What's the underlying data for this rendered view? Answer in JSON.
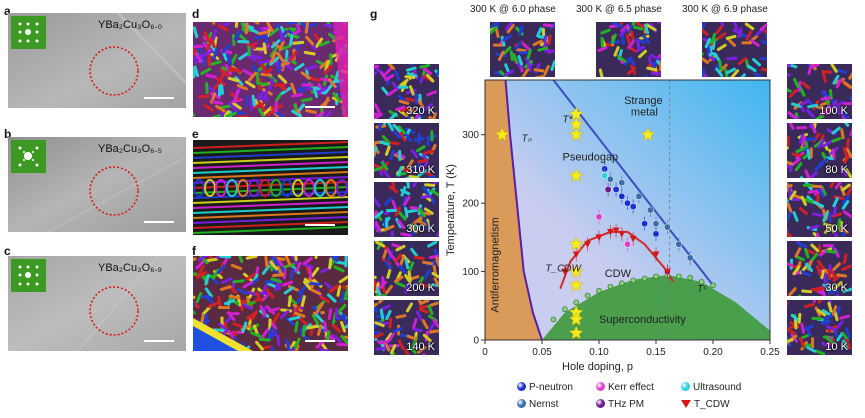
{
  "panels": {
    "a": {
      "letter": "a",
      "formula": "YBa₂Cu₃O₆.₀"
    },
    "b": {
      "letter": "b",
      "formula": "YBa₂Cu₃O₆.₅"
    },
    "c": {
      "letter": "c",
      "formula": "YBa₂Cu₃O₆.₉"
    },
    "d": {
      "letter": "d"
    },
    "e": {
      "letter": "e"
    },
    "f": {
      "letter": "f"
    },
    "g": {
      "letter": "g"
    }
  },
  "left_thumbs": [
    "320 K",
    "310 K",
    "300 K",
    "200 K",
    "140 K"
  ],
  "right_thumbs": [
    "100 K",
    "80 K",
    "50 K",
    "30 K",
    "10 K"
  ],
  "top_thumbs": [
    "300 K @ 6.0 phase",
    "300 K @ 6.5 phase",
    "300 K @ 6.9 phase"
  ],
  "colors": {
    "afm": "#d99a5a",
    "sc": "#3d9a3a",
    "strange_metal": "#3fb6f0",
    "pseudogap": "#c9cdf0",
    "tn_line": "#5a1ea8",
    "cdw_line": "#d02a2a",
    "tstar_line": "#3a4fc0",
    "tc_line": "#2a8a2a"
  },
  "chart_data": {
    "type": "scatter",
    "xlabel": "Hole doping, p",
    "ylabel": "Temperature, T (K)",
    "xlim": [
      0,
      0.25
    ],
    "ylim": [
      0,
      380
    ],
    "xticks": [
      "0",
      "0.05",
      "0.10",
      "0.15",
      "0.20",
      "0.25"
    ],
    "xtick_values": [
      0,
      0.05,
      0.1,
      0.15,
      0.2,
      0.25
    ],
    "yticks": [
      "0",
      "100",
      "200",
      "300"
    ],
    "ytick_values": [
      0,
      100,
      200,
      300
    ],
    "region_labels": {
      "afm": "Antiferromagnetism",
      "strange_metal_1": "Strange",
      "strange_metal_2": "metal",
      "pseudogap": "Pseudogap",
      "cdw": "CDW",
      "sc": "Superconductivity"
    },
    "line_labels": {
      "tn": "Tₙ",
      "tstar": "T*",
      "tcdw": "T_CDW",
      "tc": "Tᶜ"
    },
    "tn_curve": [
      [
        0.018,
        380
      ],
      [
        0.022,
        300
      ],
      [
        0.028,
        200
      ],
      [
        0.034,
        100
      ],
      [
        0.042,
        40
      ],
      [
        0.05,
        0
      ]
    ],
    "tstar_line": [
      [
        0.06,
        380
      ],
      [
        0.2,
        80
      ]
    ],
    "tc_curve": [
      [
        0.05,
        0
      ],
      [
        0.07,
        40
      ],
      [
        0.1,
        70
      ],
      [
        0.13,
        88
      ],
      [
        0.16,
        95
      ],
      [
        0.19,
        85
      ],
      [
        0.22,
        55
      ],
      [
        0.26,
        0
      ]
    ],
    "cdw_curve": [
      [
        0.066,
        75
      ],
      [
        0.075,
        115
      ],
      [
        0.09,
        145
      ],
      [
        0.11,
        158
      ],
      [
        0.125,
        158
      ],
      [
        0.14,
        140
      ],
      [
        0.16,
        100
      ],
      [
        0.165,
        85
      ]
    ],
    "series": [
      {
        "name": "P-neutron",
        "color": "#1a2fd0",
        "points": [
          [
            0.105,
            250
          ],
          [
            0.115,
            220
          ],
          [
            0.12,
            210
          ],
          [
            0.125,
            200
          ],
          [
            0.13,
            195
          ],
          [
            0.14,
            170
          ],
          [
            0.15,
            155
          ]
        ]
      },
      {
        "name": "Nernst",
        "color": "#3a6ea8",
        "points": [
          [
            0.11,
            235
          ],
          [
            0.12,
            230
          ],
          [
            0.135,
            210
          ],
          [
            0.145,
            190
          ],
          [
            0.15,
            170
          ],
          [
            0.16,
            165
          ],
          [
            0.17,
            140
          ],
          [
            0.18,
            120
          ]
        ]
      },
      {
        "name": "Kerr effect",
        "color": "#e040d0",
        "points": [
          [
            0.1,
            180
          ],
          [
            0.125,
            140
          ]
        ]
      },
      {
        "name": "THz PM",
        "color": "#6a1a8a",
        "points": [
          [
            0.108,
            220
          ],
          [
            0.16,
            100
          ]
        ]
      },
      {
        "name": "Ultrasound",
        "color": "#30d0e0",
        "points": [
          [
            0.105,
            240
          ]
        ]
      },
      {
        "name": "T_CDW",
        "color": "#d81818",
        "points": [
          [
            0.07,
            100
          ],
          [
            0.08,
            125
          ],
          [
            0.09,
            140
          ],
          [
            0.1,
            150
          ],
          [
            0.11,
            158
          ],
          [
            0.115,
            160
          ],
          [
            0.12,
            155
          ],
          [
            0.13,
            148
          ],
          [
            0.15,
            125
          ],
          [
            0.16,
            100
          ]
        ]
      }
    ],
    "tc_points": [
      [
        0.06,
        30
      ],
      [
        0.07,
        45
      ],
      [
        0.08,
        55
      ],
      [
        0.09,
        65
      ],
      [
        0.1,
        72
      ],
      [
        0.11,
        78
      ],
      [
        0.12,
        83
      ],
      [
        0.13,
        87
      ],
      [
        0.14,
        90
      ],
      [
        0.15,
        93
      ],
      [
        0.16,
        94
      ],
      [
        0.17,
        93
      ],
      [
        0.18,
        91
      ],
      [
        0.19,
        85
      ],
      [
        0.2,
        80
      ]
    ],
    "stars": [
      [
        0.015,
        300
      ],
      [
        0.08,
        330
      ],
      [
        0.08,
        315
      ],
      [
        0.08,
        300
      ],
      [
        0.08,
        240
      ],
      [
        0.08,
        140
      ],
      [
        0.08,
        100
      ],
      [
        0.08,
        80
      ],
      [
        0.08,
        40
      ],
      [
        0.08,
        30
      ],
      [
        0.08,
        10
      ],
      [
        0.143,
        300
      ]
    ]
  },
  "legend": [
    {
      "name": "P-neutron",
      "color": "#1a2fd0"
    },
    {
      "name": "Kerr effect",
      "color": "#e040d0"
    },
    {
      "name": "Ultrasound",
      "color": "#30d0e0"
    },
    {
      "name": "Nernst",
      "color": "#3a6ea8"
    },
    {
      "name": "THz PM",
      "color": "#6a1a8a"
    },
    {
      "name": "T_CDW",
      "color": "#d81818"
    }
  ]
}
